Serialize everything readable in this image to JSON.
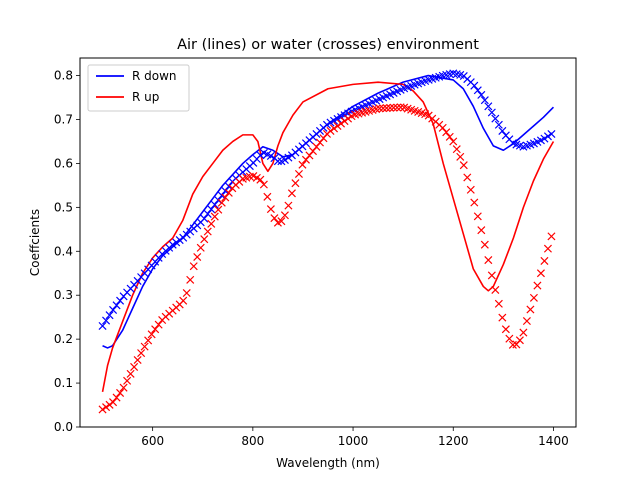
{
  "chart_data": {
    "type": "line",
    "title": "Air (lines) or water (crosses) environment",
    "xlabel": "Wavelength (nm)",
    "ylabel": "Coeffcients",
    "xlim": [
      455,
      1445
    ],
    "ylim": [
      0.0,
      0.84
    ],
    "xticks": [
      600,
      800,
      1000,
      1200,
      1400
    ],
    "yticks": [
      0.0,
      0.1,
      0.2,
      0.3,
      0.4,
      0.5,
      0.6,
      0.7,
      0.8
    ],
    "grid": false,
    "legend_position": "top-left",
    "series": [
      {
        "name": "R down",
        "color": "#0000ff",
        "style": "line",
        "legend": true,
        "x": [
          500,
          510,
          520,
          540,
          560,
          580,
          600,
          620,
          640,
          660,
          680,
          700,
          720,
          740,
          760,
          780,
          800,
          820,
          840,
          860,
          880,
          900,
          950,
          1000,
          1050,
          1100,
          1150,
          1200,
          1220,
          1240,
          1260,
          1280,
          1300,
          1320,
          1340,
          1360,
          1380,
          1400
        ],
        "values": [
          0.185,
          0.18,
          0.185,
          0.22,
          0.27,
          0.32,
          0.36,
          0.39,
          0.41,
          0.43,
          0.46,
          0.49,
          0.52,
          0.55,
          0.575,
          0.6,
          0.62,
          0.638,
          0.63,
          0.615,
          0.62,
          0.64,
          0.69,
          0.73,
          0.76,
          0.785,
          0.8,
          0.79,
          0.77,
          0.73,
          0.68,
          0.64,
          0.63,
          0.645,
          0.665,
          0.685,
          0.705,
          0.728
        ]
      },
      {
        "name": "R up",
        "color": "#ff0000",
        "style": "line",
        "legend": true,
        "x": [
          500,
          510,
          520,
          540,
          560,
          580,
          600,
          620,
          640,
          660,
          680,
          700,
          720,
          740,
          760,
          780,
          800,
          810,
          820,
          830,
          840,
          850,
          860,
          880,
          900,
          950,
          1000,
          1050,
          1100,
          1120,
          1140,
          1160,
          1180,
          1200,
          1220,
          1240,
          1260,
          1270,
          1280,
          1300,
          1320,
          1340,
          1360,
          1380,
          1400
        ],
        "values": [
          0.08,
          0.14,
          0.18,
          0.24,
          0.3,
          0.35,
          0.385,
          0.41,
          0.43,
          0.47,
          0.53,
          0.57,
          0.6,
          0.63,
          0.65,
          0.665,
          0.665,
          0.65,
          0.6,
          0.582,
          0.6,
          0.64,
          0.67,
          0.71,
          0.74,
          0.77,
          0.78,
          0.785,
          0.78,
          0.765,
          0.74,
          0.69,
          0.6,
          0.52,
          0.44,
          0.36,
          0.32,
          0.31,
          0.32,
          0.37,
          0.43,
          0.5,
          0.56,
          0.61,
          0.65
        ]
      },
      {
        "name": "R down (water)",
        "color": "#0000ff",
        "style": "cross",
        "legend": false,
        "x": [
          500,
          520,
          540,
          560,
          580,
          600,
          620,
          640,
          660,
          680,
          700,
          720,
          740,
          760,
          780,
          800,
          820,
          840,
          850,
          860,
          880,
          900,
          950,
          1000,
          1050,
          1100,
          1150,
          1180,
          1200,
          1220,
          1240,
          1260,
          1280,
          1300,
          1320,
          1340,
          1360,
          1380,
          1400
        ],
        "values": [
          0.23,
          0.265,
          0.295,
          0.32,
          0.345,
          0.37,
          0.395,
          0.415,
          0.43,
          0.45,
          0.47,
          0.5,
          0.53,
          0.56,
          0.58,
          0.6,
          0.625,
          0.615,
          0.605,
          0.605,
          0.62,
          0.64,
          0.69,
          0.72,
          0.745,
          0.77,
          0.79,
          0.8,
          0.805,
          0.8,
          0.78,
          0.75,
          0.71,
          0.67,
          0.645,
          0.638,
          0.645,
          0.655,
          0.67
        ]
      },
      {
        "name": "R up (water)",
        "color": "#ff0000",
        "style": "cross",
        "legend": false,
        "x": [
          500,
          520,
          540,
          560,
          580,
          600,
          620,
          640,
          660,
          670,
          680,
          700,
          720,
          740,
          760,
          780,
          800,
          820,
          830,
          840,
          850,
          860,
          870,
          880,
          900,
          950,
          1000,
          1050,
          1100,
          1150,
          1180,
          1200,
          1220,
          1240,
          1260,
          1280,
          1300,
          1310,
          1320,
          1330,
          1340,
          1360,
          1380,
          1400
        ],
        "values": [
          0.04,
          0.055,
          0.085,
          0.13,
          0.175,
          0.215,
          0.245,
          0.265,
          0.285,
          0.31,
          0.36,
          0.42,
          0.47,
          0.515,
          0.545,
          0.565,
          0.572,
          0.56,
          0.52,
          0.48,
          0.465,
          0.47,
          0.5,
          0.54,
          0.6,
          0.67,
          0.71,
          0.725,
          0.728,
          0.71,
          0.68,
          0.65,
          0.6,
          0.52,
          0.43,
          0.33,
          0.24,
          0.205,
          0.185,
          0.19,
          0.215,
          0.29,
          0.37,
          0.45
        ]
      }
    ]
  }
}
